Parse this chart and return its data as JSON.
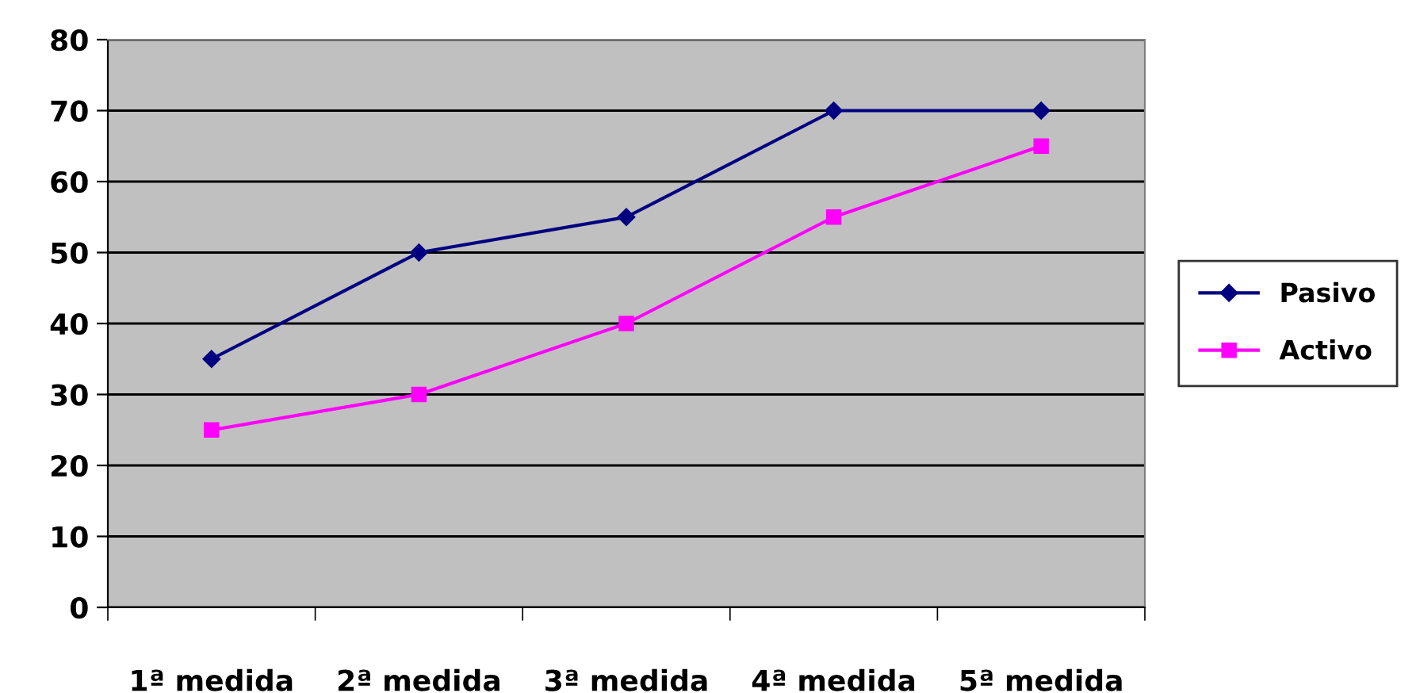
{
  "chart_data": {
    "type": "line",
    "categories": [
      "1ª medida",
      "2ª medida",
      "3ª medida",
      "4ª medida",
      "5ª medida"
    ],
    "series": [
      {
        "name": "Pasivo",
        "color": "#000080",
        "marker": "diamond",
        "values": [
          35,
          50,
          55,
          70,
          70
        ]
      },
      {
        "name": "Activo",
        "color": "#ff00ff",
        "marker": "square",
        "values": [
          25,
          30,
          40,
          55,
          65
        ]
      }
    ],
    "ylim": [
      0,
      80
    ],
    "yticks": [
      0,
      10,
      20,
      30,
      40,
      50,
      60,
      70,
      80
    ],
    "grid": "y",
    "legend": "right",
    "line_style": "solid"
  }
}
